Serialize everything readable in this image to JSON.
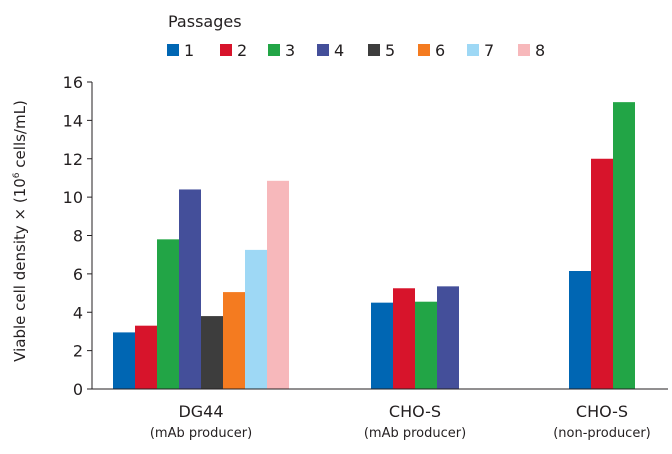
{
  "chart_data": {
    "type": "bar",
    "legend_title": "Passages",
    "legend_position": "top",
    "ylabel_main": "Viable cell density × (10",
    "ylabel_sup": "6",
    "ylabel_tail": " cells/mL)",
    "ylim": [
      0,
      16
    ],
    "yticks": [
      0,
      2,
      4,
      6,
      8,
      10,
      12,
      14,
      16
    ],
    "grid": false,
    "groups": [
      {
        "label": "DG44",
        "sublabel": "(mAb producer)"
      },
      {
        "label": "CHO-S",
        "sublabel": "(mAb producer)"
      },
      {
        "label": "CHO-S",
        "sublabel": "(non-producer)"
      }
    ],
    "series": [
      {
        "name": "1",
        "color": "#0066b3",
        "values": [
          2.95,
          4.5,
          6.15
        ]
      },
      {
        "name": "2",
        "color": "#d7142b",
        "values": [
          3.3,
          5.25,
          12.0
        ]
      },
      {
        "name": "3",
        "color": "#22a546",
        "values": [
          7.8,
          4.55,
          14.95
        ]
      },
      {
        "name": "4",
        "color": "#444f9a",
        "values": [
          10.4,
          5.35,
          null
        ]
      },
      {
        "name": "5",
        "color": "#3d3d3d",
        "values": [
          3.8,
          null,
          null
        ]
      },
      {
        "name": "6",
        "color": "#f47b20",
        "values": [
          5.05,
          null,
          null
        ]
      },
      {
        "name": "7",
        "color": "#9ed8f5",
        "values": [
          7.25,
          null,
          null
        ]
      },
      {
        "name": "8",
        "color": "#f7b8bb",
        "values": [
          10.85,
          null,
          null
        ]
      }
    ]
  }
}
